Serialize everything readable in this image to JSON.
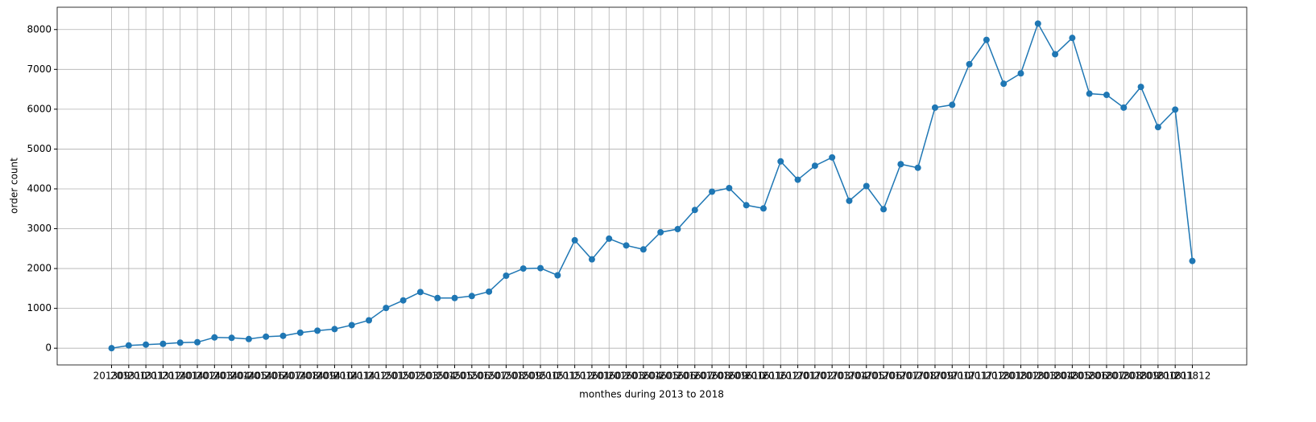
{
  "chart_data": {
    "type": "line",
    "xlabel": "monthes during 2013 to 2018",
    "ylabel": "order count",
    "categories": [
      "201309",
      "201310",
      "201311",
      "201312",
      "201401",
      "201402",
      "201403",
      "201404",
      "201405",
      "201406",
      "201407",
      "201408",
      "201409",
      "201410",
      "201411",
      "201412",
      "201501",
      "201502",
      "201503",
      "201504",
      "201505",
      "201506",
      "201507",
      "201508",
      "201509",
      "201510",
      "201511",
      "201512",
      "201601",
      "201602",
      "201603",
      "201604",
      "201605",
      "201606",
      "201607",
      "201608",
      "201609",
      "201610",
      "201611",
      "201612",
      "201701",
      "201702",
      "201703",
      "201704",
      "201705",
      "201706",
      "201707",
      "201708",
      "201709",
      "201710",
      "201711",
      "201712",
      "201801",
      "201802",
      "201803",
      "201804",
      "201805",
      "201806",
      "201807",
      "201808",
      "201809",
      "201810",
      "201811",
      "201812"
    ],
    "series": [
      {
        "name": "order count",
        "color": "#1f77b4",
        "values": [
          0,
          70,
          90,
          110,
          140,
          150,
          270,
          260,
          230,
          290,
          310,
          390,
          440,
          480,
          580,
          700,
          1010,
          1200,
          1410,
          1260,
          1260,
          1310,
          1420,
          1820,
          2000,
          2010,
          1830,
          2710,
          2230,
          2750,
          2580,
          2480,
          2910,
          2990,
          3470,
          3930,
          4020,
          3590,
          3510,
          4690,
          4230,
          4580,
          4790,
          3700,
          4070,
          3490,
          4620,
          4530,
          6040,
          6110,
          7130,
          7740,
          6640,
          6900,
          8150,
          7380,
          7790,
          6390,
          6360,
          6040,
          6560,
          5550,
          5990,
          2190
        ]
      }
    ],
    "ylim": [
      -420,
      8560
    ],
    "yticks": [
      0,
      1000,
      2000,
      3000,
      4000,
      5000,
      6000,
      7000,
      8000
    ],
    "grid": true,
    "markers": true
  }
}
